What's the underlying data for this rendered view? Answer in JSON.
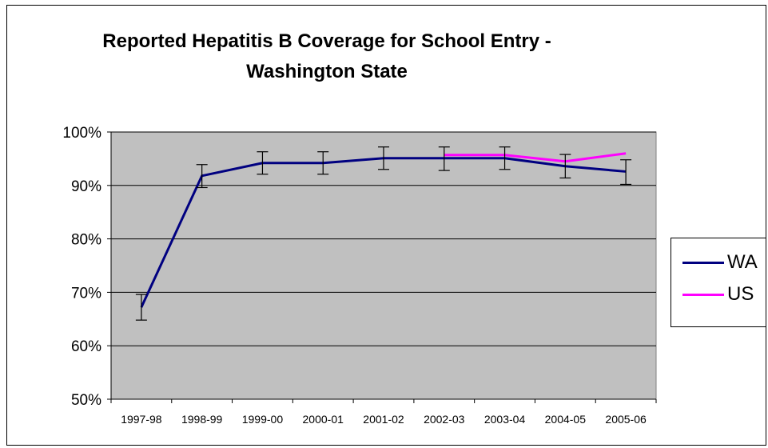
{
  "chart_data": {
    "type": "line",
    "title_lines": [
      "Reported Hepatitis B Coverage for School Entry -",
      "Washington State"
    ],
    "categories": [
      "1997-98",
      "1998-99",
      "1999-00",
      "2000-01",
      "2001-02",
      "2002-03",
      "2003-04",
      "2004-05",
      "2005-06"
    ],
    "ylim": [
      50,
      100
    ],
    "y_ticks": [
      50,
      60,
      70,
      80,
      90,
      100
    ],
    "y_tick_labels": [
      "50%",
      "60%",
      "70%",
      "80%",
      "90%",
      "100%"
    ],
    "grid": true,
    "legend_position": "right",
    "plot_background": "#c0c0c0",
    "series": [
      {
        "name": "WA",
        "color": "#000080",
        "values": [
          67.2,
          91.8,
          94.2,
          94.2,
          95.1,
          95.1,
          95.1,
          93.6,
          92.6
        ],
        "error_low": [
          64.8,
          89.6,
          92.1,
          92.1,
          93.0,
          92.8,
          93.0,
          91.4,
          90.2
        ],
        "error_high": [
          69.6,
          93.9,
          96.3,
          96.3,
          97.2,
          97.2,
          97.2,
          95.8,
          94.8
        ]
      },
      {
        "name": "US",
        "color": "#ff00ff",
        "values": [
          null,
          null,
          null,
          null,
          null,
          95.7,
          95.7,
          94.5,
          96.0
        ]
      }
    ]
  }
}
